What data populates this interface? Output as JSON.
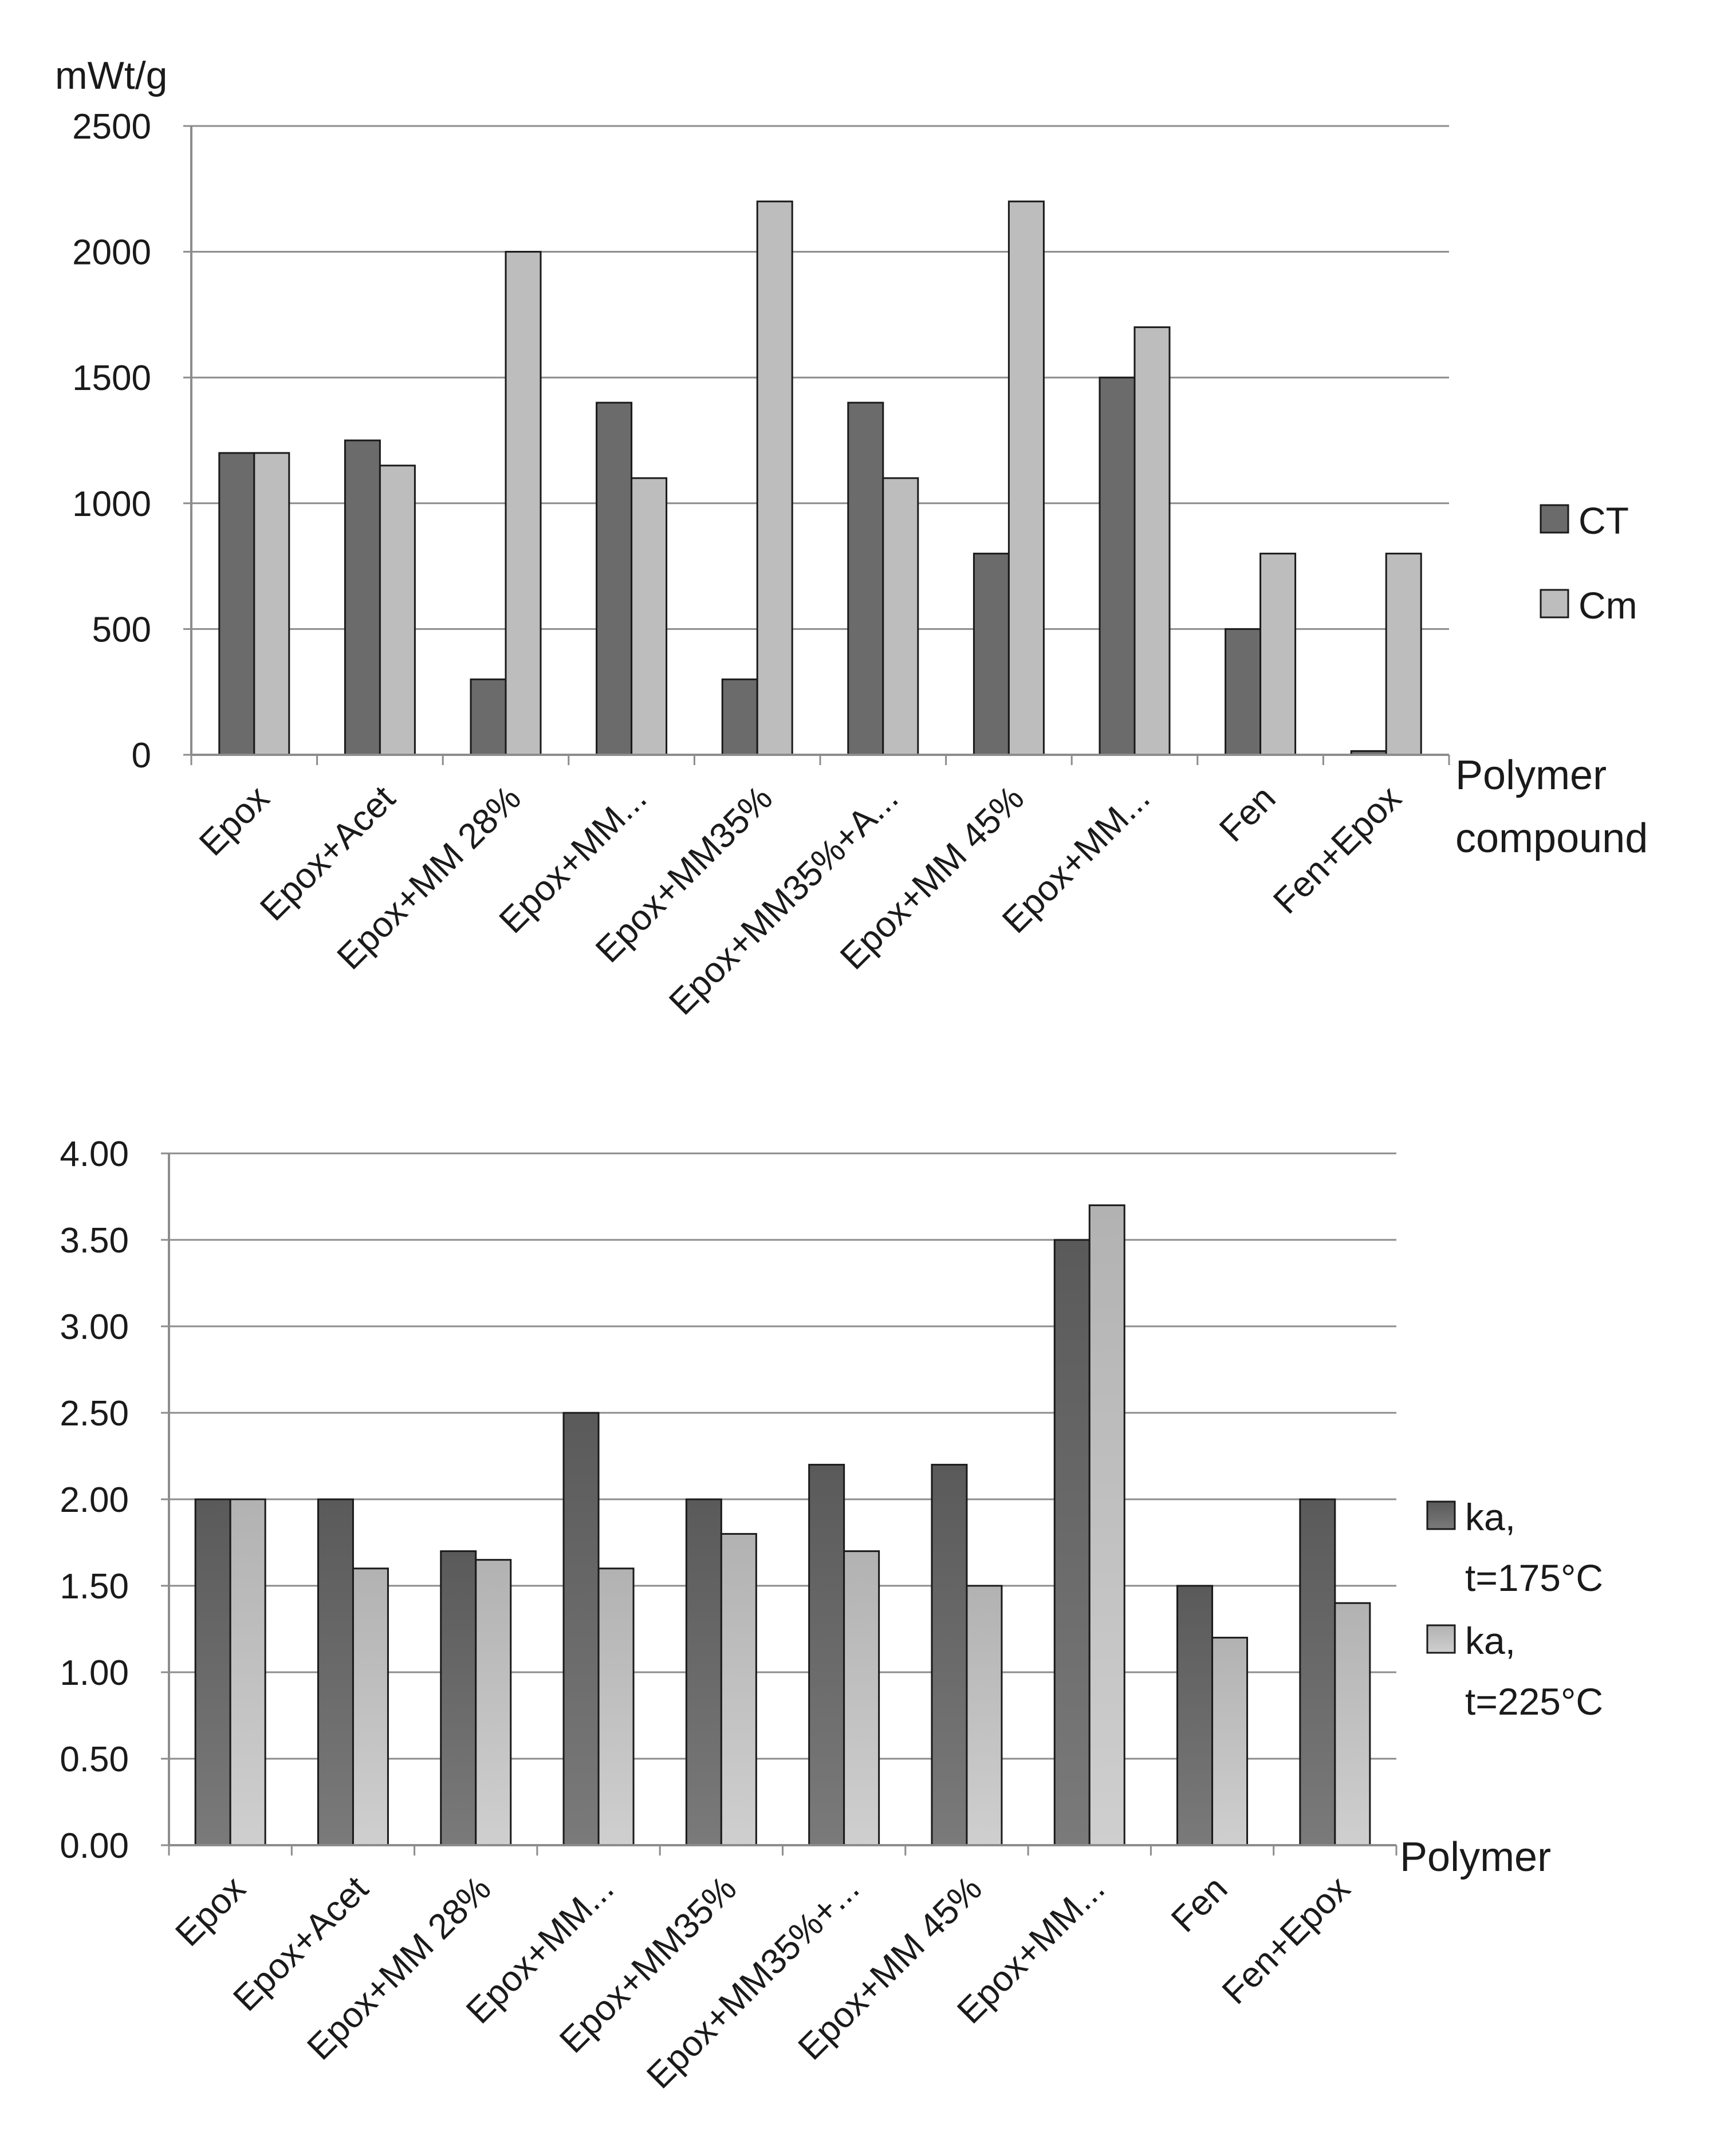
{
  "colors": {
    "background": "#ffffff",
    "series_dark": "#6b6b6b",
    "series_light": "#bdbdbd",
    "grid": "#8c8c8c",
    "bar_stroke": "#1a1a1a",
    "text": "#1a1a1a"
  },
  "chart_data": [
    {
      "type": "bar",
      "title": "",
      "ylabel": "mWt/g",
      "xlabel_lines": [
        "Polymer",
        "compound"
      ],
      "ylim": [
        0,
        2500
      ],
      "yticks": [
        0,
        500,
        1000,
        1500,
        2000,
        2500
      ],
      "ytick_labels": [
        "0",
        "500",
        "1000",
        "1500",
        "2000",
        "2500"
      ],
      "grid": true,
      "legend_position": "right",
      "categories": [
        "Epox",
        "Epox+Acet",
        "Epox+MM 28%",
        "Epox+MM...",
        "Epox+MM35%",
        "Epox+MM35%+A...",
        "Epox+MM 45%",
        "Epox+MM...",
        "Fen",
        "Fen+Epox"
      ],
      "series": [
        {
          "name": "CT",
          "legend_lines": [
            "CT"
          ],
          "values": [
            1200,
            1250,
            300,
            1400,
            300,
            1400,
            800,
            1500,
            500,
            15
          ]
        },
        {
          "name": "Cm",
          "legend_lines": [
            "Cm"
          ],
          "values": [
            1200,
            1150,
            2000,
            1100,
            2200,
            1100,
            2200,
            1700,
            800,
            800
          ]
        }
      ]
    },
    {
      "type": "bar",
      "title": "",
      "ylabel": "",
      "xlabel_lines": [
        "Polymer"
      ],
      "ylim": [
        0,
        4
      ],
      "yticks": [
        0,
        0.5,
        1,
        1.5,
        2,
        2.5,
        3,
        3.5,
        4
      ],
      "ytick_labels": [
        "0.00",
        "0.50",
        "1.00",
        "1.50",
        "2.00",
        "2.50",
        "3.00",
        "3.50",
        "4.00"
      ],
      "grid": true,
      "legend_position": "right",
      "categories": [
        "Epox",
        "Epox+Acet",
        "Epox+MM 28%",
        "Epox+MM...",
        "Epox+MM35%",
        "Epox+MM35%+...",
        "Epox+MM 45%",
        "Epox+MM...",
        "Fen",
        "Fen+Epox"
      ],
      "series": [
        {
          "name": "ka, t=175°C",
          "legend_lines": [
            "ka,",
            "t=175°C"
          ],
          "values": [
            2.0,
            2.0,
            1.7,
            2.5,
            2.0,
            2.2,
            2.2,
            3.5,
            1.5,
            2.0
          ]
        },
        {
          "name": "ka, t=225°C",
          "legend_lines": [
            "ka,",
            "t=225°C"
          ],
          "values": [
            2.0,
            1.6,
            1.65,
            1.6,
            1.8,
            1.7,
            1.5,
            3.7,
            1.2,
            1.4
          ]
        }
      ]
    }
  ]
}
